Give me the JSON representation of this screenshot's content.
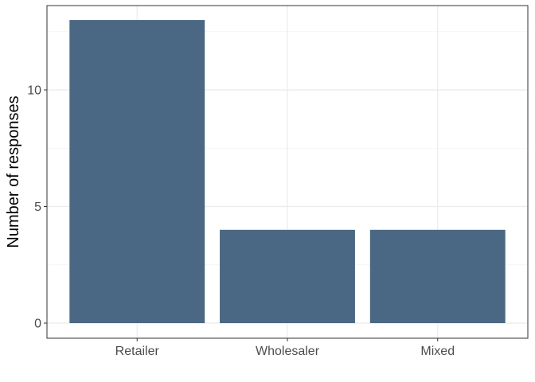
{
  "chart_data": {
    "type": "bar",
    "title": "",
    "xlabel": "",
    "ylabel": "Number of responses",
    "categories": [
      "Retailer",
      "Wholesaler",
      "Mixed"
    ],
    "values": [
      13,
      4,
      4
    ],
    "ylim": [
      0,
      13.65
    ],
    "yticks": [
      0,
      5,
      10
    ],
    "grid": true,
    "legend": "none",
    "colors": {
      "bar": "#4a6883",
      "panel_border": "#333333",
      "grid_major": "#ebebeb",
      "grid_minor": "#f2f2f2",
      "tick_label": "#4d4d4d",
      "axis_title": "#000000"
    }
  }
}
